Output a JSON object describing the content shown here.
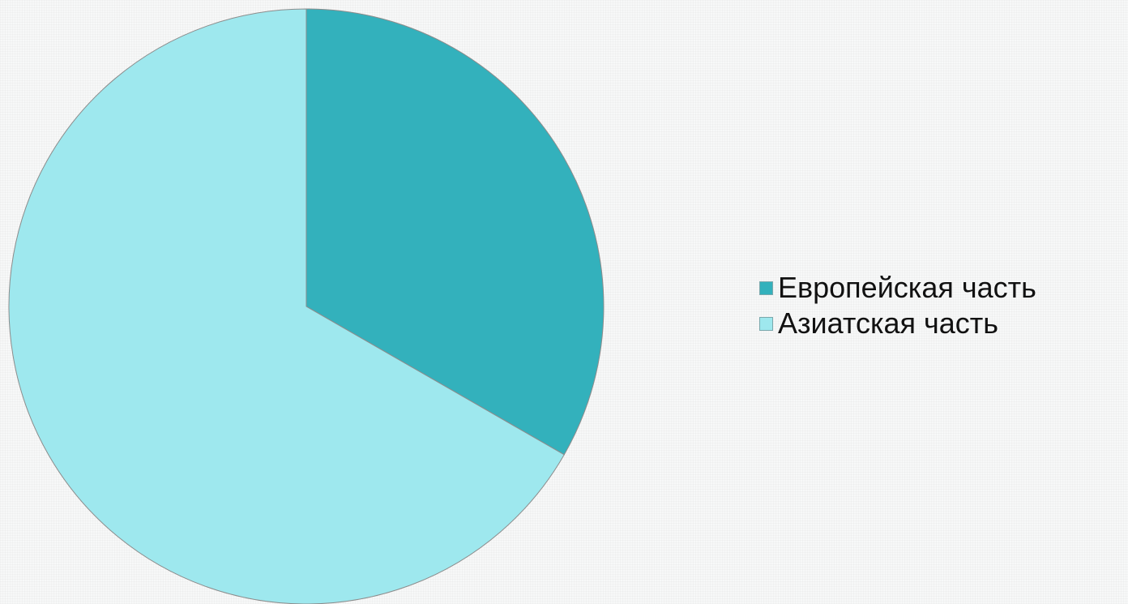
{
  "chart_data": {
    "type": "pie",
    "title": "",
    "start_angle": "12 o'clock",
    "direction": "clockwise",
    "legend_position": "right",
    "slices": [
      {
        "label": "Европейская часть",
        "value": 33.3,
        "color": "#33b1bc"
      },
      {
        "label": "Азиатская часть",
        "value": 66.7,
        "color": "#9ee8ee"
      }
    ]
  }
}
